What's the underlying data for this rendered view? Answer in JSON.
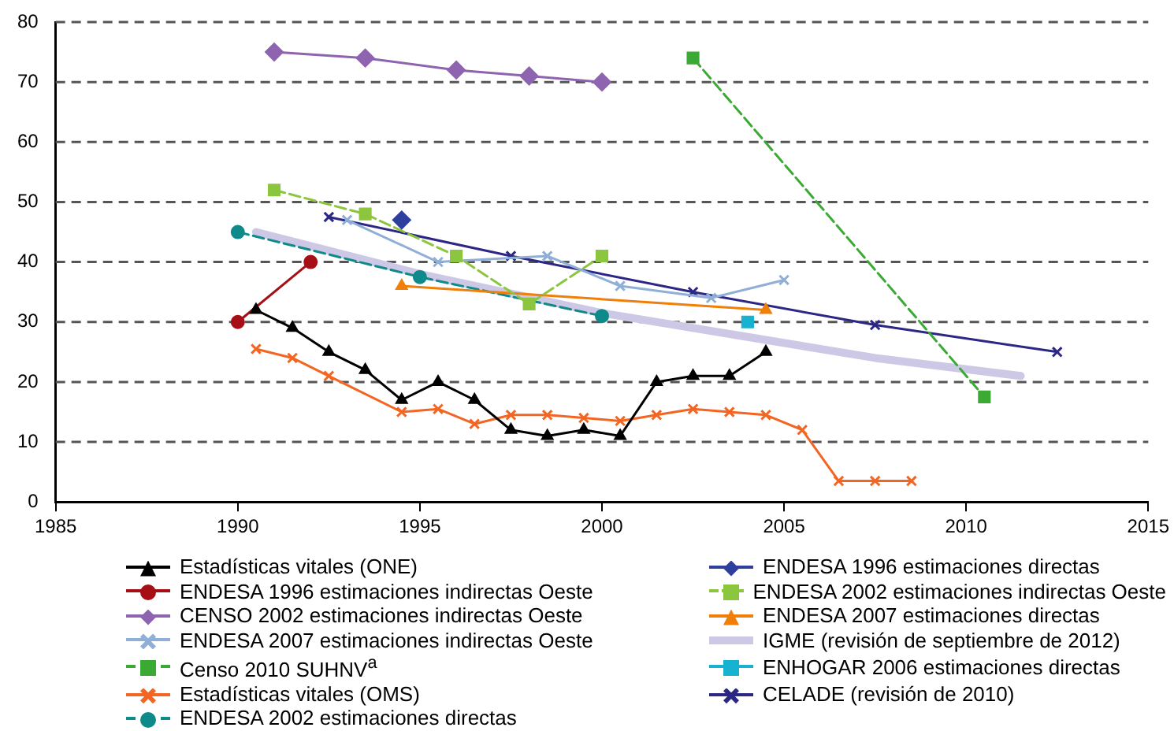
{
  "chart_data": {
    "type": "line",
    "xlim": [
      1985,
      2015
    ],
    "xticks": [
      1985,
      1990,
      1995,
      2000,
      2005,
      2010,
      2015
    ],
    "ylim": [
      0,
      80
    ],
    "yticks": [
      0,
      10,
      20,
      30,
      40,
      50,
      60,
      70,
      80
    ],
    "grid": "y",
    "legend": "bottom",
    "series": [
      {
        "name": "Estadísticas vitales (ONE)",
        "color": "#000000",
        "marker": "triangle",
        "x": [
          1990.5,
          1991.5,
          1992.5,
          1993.5,
          1994.5,
          1995.5,
          1996.5,
          1997.5,
          1998.5,
          1999.5,
          2000.5,
          2001.5,
          2002.5,
          2003.5,
          2004.5
        ],
        "values": [
          32,
          29,
          25,
          22,
          17,
          20,
          17,
          12,
          11,
          12,
          11,
          20,
          21,
          21,
          25
        ]
      },
      {
        "name": "ENDESA 1996 estimaciones directas",
        "color": "#2f3f9e",
        "marker": "diamond",
        "x": [
          1994.5
        ],
        "values": [
          47
        ]
      },
      {
        "name": "ENDESA 1996 estimaciones indirectas Oeste",
        "color": "#a50f15",
        "marker": "circle",
        "x": [
          1990,
          1992
        ],
        "values": [
          30,
          40
        ]
      },
      {
        "name": "ENDESA 2002 estimaciones indirectas Oeste",
        "color": "#8cc63f",
        "marker": "square",
        "line_style": "dashed",
        "x": [
          1991,
          1993.5,
          1996,
          1998,
          2000
        ],
        "values": [
          52,
          48,
          41,
          33,
          41
        ]
      },
      {
        "name": "CENSO 2002 estimaciones indirectas Oeste",
        "color": "#8e63b0",
        "marker": "diamond",
        "x": [
          1991,
          1993.5,
          1996,
          1998,
          2000
        ],
        "values": [
          75,
          74,
          72,
          71,
          70
        ]
      },
      {
        "name": "ENDESA 2007 estimaciones directas",
        "color": "#f07f09",
        "marker": "triangle",
        "x": [
          1994.5,
          2004.5
        ],
        "values": [
          36,
          32
        ]
      },
      {
        "name": "ENDESA 2007 estimaciones indirectas Oeste",
        "color": "#8fafd7",
        "marker": "cross",
        "x": [
          1993,
          1995.5,
          1998.5,
          2000.5,
          2003,
          2005
        ],
        "values": [
          47,
          40,
          41,
          36,
          34,
          37
        ]
      },
      {
        "name": "IGME (revisión de septiembre de 2012)",
        "color": "#ccc8e6",
        "marker": "none",
        "x": [
          1990.5,
          1995,
          2000,
          2004,
          2007.5,
          2011.5
        ],
        "values": [
          45,
          38,
          31.5,
          27.5,
          24,
          21
        ]
      },
      {
        "name": "Censo 2010 SUHNV$^{a}$",
        "color": "#3aaa35",
        "marker": "square",
        "line_style": "dashed",
        "x": [
          2002.5,
          2010.5
        ],
        "values": [
          74,
          17.5
        ]
      },
      {
        "name": "ENHOGAR 2006 estimaciones directas",
        "color": "#17b2cf",
        "marker": "square",
        "x": [
          2004
        ],
        "values": [
          30
        ]
      },
      {
        "name": "Estadísticas vitales (OMS)",
        "color": "#f26522",
        "marker": "cross",
        "x": [
          1990.5,
          1991.5,
          1992.5,
          1994.5,
          1995.5,
          1996.5,
          1997.5,
          1998.5,
          1999.5,
          2000.5,
          2001.5,
          2002.5,
          2003.5,
          2004.5,
          2005.5,
          2006.5,
          2007.5,
          2008.5
        ],
        "values": [
          25.5,
          24,
          21,
          15,
          15.5,
          13,
          14.5,
          14.5,
          14,
          13.5,
          14.5,
          15.5,
          15,
          14.5,
          12,
          3.5,
          3.5,
          3.5
        ]
      },
      {
        "name": "CELADE (revisión de 2010)",
        "color": "#2c2785",
        "marker": "cross",
        "x": [
          1992.5,
          1997.5,
          2002.5,
          2007.5,
          2012.5
        ],
        "values": [
          47.5,
          41,
          35,
          29.5,
          25
        ]
      },
      {
        "name": "ENDESA 2002 estimaciones directas",
        "color": "#0f8a8a",
        "marker": "circle",
        "line_style": "dashed",
        "x": [
          1990,
          1995,
          2000
        ],
        "values": [
          45,
          37.5,
          31
        ]
      }
    ]
  }
}
